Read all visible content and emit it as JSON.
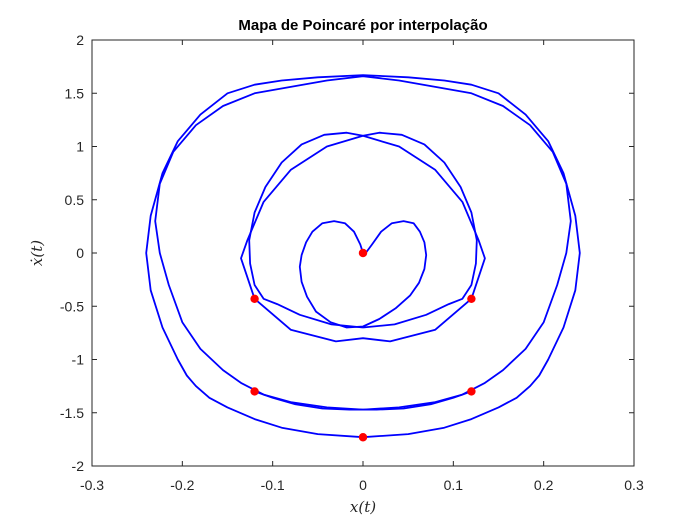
{
  "chart_data": {
    "type": "line",
    "title": "Mapa de Poincaré por interpolação",
    "xlabel": "x(t)",
    "ylabel": "ẋ(t)",
    "xlim": [
      -0.3,
      0.3
    ],
    "ylim": [
      -2,
      2
    ],
    "xticks": [
      -0.3,
      -0.2,
      -0.1,
      0,
      0.1,
      0.2,
      0.3
    ],
    "yticks": [
      -2,
      -1.5,
      -1,
      -0.5,
      0,
      0.5,
      1,
      1.5,
      2
    ],
    "xtick_labels": [
      "-0.3",
      "-0.2",
      "-0.1",
      "0",
      "0.1",
      "0.2",
      "0.3"
    ],
    "ytick_labels": [
      "-2",
      "-1.5",
      "-1",
      "-0.5",
      "0",
      "0.5",
      "1",
      "1.5",
      "2"
    ],
    "grid": false,
    "series": [
      {
        "color": "#0000ff",
        "style": "line",
        "x": [
          0,
          -0.003,
          -0.01,
          -0.02,
          -0.032,
          -0.045,
          -0.056,
          -0.063,
          -0.068,
          -0.07,
          -0.068,
          -0.062,
          -0.052,
          -0.036,
          -0.018,
          0,
          0.018,
          0.036,
          0.052,
          0.062,
          0.068,
          0.07,
          0.068,
          0.063,
          0.056,
          0.045,
          0.032,
          0.02,
          0.01,
          0.003,
          0
        ],
        "y": [
          0,
          0.08,
          0.2,
          0.28,
          0.3,
          0.28,
          0.2,
          0.1,
          -0.02,
          -0.13,
          -0.27,
          -0.41,
          -0.55,
          -0.65,
          -0.7,
          -0.69,
          -0.62,
          -0.52,
          -0.4,
          -0.28,
          -0.15,
          -0.02,
          0.1,
          0.2,
          0.28,
          0.3,
          0.28,
          0.2,
          0.08,
          0,
          0
        ]
      },
      {
        "color": "#0000ff",
        "style": "line",
        "x": [
          0,
          -0.035,
          -0.07,
          -0.095,
          -0.11,
          -0.12,
          -0.125,
          -0.126,
          -0.12,
          -0.108,
          -0.09,
          -0.068,
          -0.043,
          -0.018,
          0,
          0.018,
          0.043,
          0.068,
          0.09,
          0.108,
          0.12,
          0.126,
          0.125,
          0.12,
          0.11,
          0.095,
          0.07,
          0.035,
          0
        ],
        "y": [
          -0.7,
          -0.67,
          -0.58,
          -0.48,
          -0.43,
          -0.3,
          -0.1,
          0.12,
          0.38,
          0.62,
          0.85,
          1.02,
          1.11,
          1.13,
          1.1,
          1.13,
          1.11,
          1.02,
          0.85,
          0.62,
          0.38,
          0.12,
          -0.1,
          -0.3,
          -0.43,
          -0.48,
          -0.58,
          -0.67,
          -0.7
        ]
      },
      {
        "color": "#0000ff",
        "style": "line",
        "x": [
          0,
          0.04,
          0.08,
          0.11,
          0.128,
          0.135,
          0.12,
          0.08,
          0.03,
          0,
          -0.03,
          -0.08,
          -0.12,
          -0.135,
          -0.128,
          -0.11,
          -0.08,
          -0.04,
          0
        ],
        "y": [
          1.1,
          1.0,
          0.78,
          0.48,
          0.12,
          -0.05,
          -0.43,
          -0.72,
          -0.83,
          -0.8,
          -0.83,
          -0.72,
          -0.43,
          -0.05,
          0.12,
          0.48,
          0.78,
          1.0,
          1.1
        ]
      },
      {
        "color": "#0000ff",
        "style": "line",
        "x": [
          0,
          -0.05,
          -0.09,
          -0.12,
          -0.15,
          -0.17,
          -0.185,
          -0.195,
          -0.205,
          -0.222,
          -0.235,
          -0.24,
          -0.235,
          -0.222,
          -0.205,
          -0.18,
          -0.15,
          -0.12,
          -0.09,
          -0.05,
          0,
          0.05,
          0.09,
          0.12,
          0.15,
          0.18,
          0.205,
          0.222,
          0.235,
          0.24,
          0.235,
          0.222,
          0.205,
          0.195,
          0.185,
          0.17,
          0.15,
          0.12,
          0.09,
          0.05,
          0
        ],
        "y": [
          -1.73,
          -1.7,
          -1.64,
          -1.56,
          -1.45,
          -1.36,
          -1.25,
          -1.15,
          -1.0,
          -0.7,
          -0.35,
          0,
          0.35,
          0.75,
          1.05,
          1.3,
          1.5,
          1.58,
          1.62,
          1.65,
          1.67,
          1.65,
          1.62,
          1.58,
          1.5,
          1.3,
          1.05,
          0.75,
          0.35,
          0,
          -0.35,
          -0.7,
          -1.0,
          -1.15,
          -1.25,
          -1.36,
          -1.45,
          -1.56,
          -1.64,
          -1.7,
          -1.73
        ]
      },
      {
        "color": "#0000ff",
        "style": "line",
        "x": [
          0,
          -0.04,
          -0.08,
          -0.11,
          -0.135,
          -0.155,
          -0.18,
          -0.2,
          -0.215,
          -0.225,
          -0.23,
          -0.225,
          -0.21,
          -0.185,
          -0.155,
          -0.12,
          -0.08,
          -0.04,
          0,
          0.04,
          0.08,
          0.12,
          0.155,
          0.185,
          0.21,
          0.225,
          0.23,
          0.225,
          0.215,
          0.2,
          0.18,
          0.155,
          0.135,
          0.11,
          0.08,
          0.04,
          0
        ],
        "y": [
          -1.47,
          -1.45,
          -1.4,
          -1.33,
          -1.22,
          -1.1,
          -0.9,
          -0.65,
          -0.3,
          0,
          0.3,
          0.65,
          0.95,
          1.2,
          1.38,
          1.5,
          1.56,
          1.62,
          1.66,
          1.62,
          1.56,
          1.5,
          1.38,
          1.2,
          0.95,
          0.65,
          0.3,
          0,
          -0.3,
          -0.65,
          -0.9,
          -1.1,
          -1.22,
          -1.33,
          -1.4,
          -1.45,
          -1.47
        ]
      },
      {
        "color": "#0000ff",
        "style": "line",
        "x": [
          -0.12,
          -0.1,
          -0.075,
          -0.045,
          -0.015,
          0,
          0.015,
          0.045,
          0.075,
          0.1,
          0.12
        ],
        "y": [
          -1.3,
          -1.36,
          -1.42,
          -1.46,
          -1.47,
          -1.47,
          -1.47,
          -1.46,
          -1.42,
          -1.36,
          -1.3
        ]
      }
    ],
    "markers": {
      "color": "#ff0000",
      "x": [
        0,
        -0.12,
        0.12,
        -0.12,
        0.12,
        0
      ],
      "y": [
        0,
        -0.43,
        -0.43,
        -1.3,
        -1.3,
        -1.73
      ]
    }
  }
}
